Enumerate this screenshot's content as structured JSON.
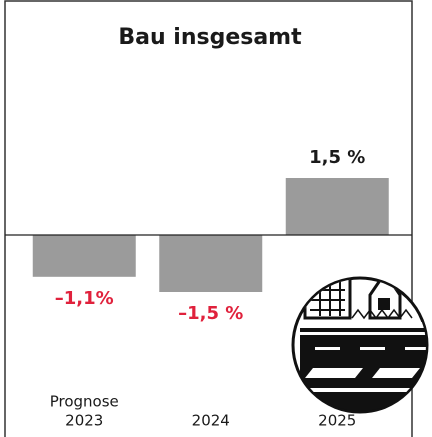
{
  "chart_data": {
    "type": "bar",
    "title": "Bau insgesamt",
    "annotation": "Prognose",
    "categories": [
      "2023",
      "2024",
      "2025"
    ],
    "values": [
      -1.1,
      -1.5,
      1.5
    ],
    "value_labels": [
      "–1,1%",
      "–1,5 %",
      "1,5 %"
    ],
    "color": "#9b9b9b",
    "label_colors": {
      "negative": "#e0213c",
      "positive": "#1a1a1a"
    }
  }
}
